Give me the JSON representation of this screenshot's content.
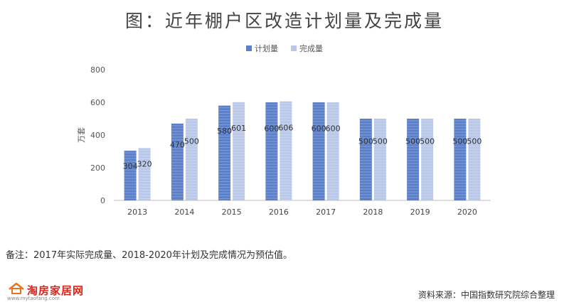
{
  "title": "图：近年棚户区改造计划量及完成量",
  "note": "备注：2017年实际完成量、2018-2020年计划及完成情况为预估值。",
  "source": "资料来源：中国指数研究院综合整理",
  "logo": {
    "text": "淘房家居网",
    "sub": "www.mytaofang.com"
  },
  "colors": {
    "plan": "#5b7fc9",
    "done": "#b9c8e8",
    "axis": "#bfbfbf",
    "grid": "#e6e6e6"
  },
  "chart_data": {
    "type": "bar",
    "title": "图：近年棚户区改造计划量及完成量",
    "ylabel": "万套",
    "xlabel": "",
    "ylim": [
      0,
      800
    ],
    "yticks": [
      0,
      200,
      400,
      600,
      800
    ],
    "categories": [
      "2013",
      "2014",
      "2015",
      "2016",
      "2017",
      "2018",
      "2019",
      "2020"
    ],
    "series": [
      {
        "name": "计划量",
        "values": [
          304,
          470,
          580,
          600,
          600,
          500,
          500,
          500
        ]
      },
      {
        "name": "完成量",
        "values": [
          320,
          500,
          601,
          606,
          600,
          500,
          500,
          500
        ]
      }
    ],
    "legend": "top-center",
    "grid": false
  }
}
